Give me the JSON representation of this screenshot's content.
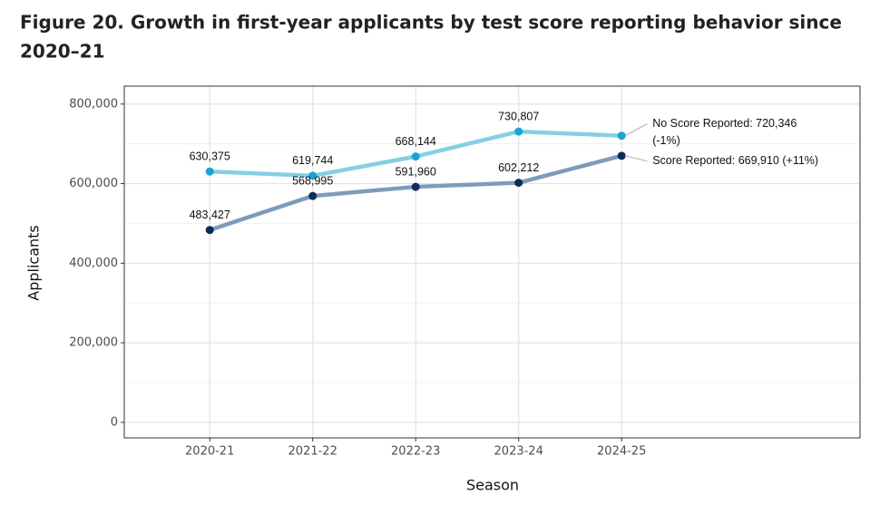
{
  "chart_data": {
    "type": "line",
    "title_lines": [
      "Figure 20. Growth in first-year applicants by test score reporting behavior since",
      "2020–21"
    ],
    "x_label": "Season",
    "y_label": "Applicants",
    "categories": [
      "2020-21",
      "2021-22",
      "2022-23",
      "2023-24",
      "2024-25"
    ],
    "series": [
      {
        "name": "No Score Reported",
        "color": "#85cfe6",
        "point_color": "#1ba3d0",
        "values": [
          630375,
          619744,
          668144,
          730807,
          720346
        ],
        "value_labels": [
          "630,375",
          "619,744",
          "668,144",
          "730,807",
          null
        ],
        "end_label": [
          "No Score Reported: 720,346",
          "(-1%)"
        ]
      },
      {
        "name": "Score Reported",
        "color": "#7f9bb9",
        "point_color": "#0c2d5c",
        "values": [
          483427,
          568995,
          591960,
          602212,
          669910
        ],
        "value_labels": [
          "483,427",
          "568,995",
          "591,960",
          "602,212",
          null
        ],
        "end_label": [
          "Score Reported: 669,910 (+11%)"
        ]
      }
    ],
    "ylim": [
      -39000,
      845000
    ],
    "yticks": [
      {
        "value": 0,
        "label": "0"
      },
      {
        "value": 200000,
        "label": "200,000"
      },
      {
        "value": 400000,
        "label": "400,000"
      },
      {
        "value": 600000,
        "label": "600,000"
      },
      {
        "value": 800000,
        "label": "800,000"
      }
    ],
    "minor_yticks": [
      100000,
      300000,
      500000,
      700000
    ],
    "grid": true
  }
}
